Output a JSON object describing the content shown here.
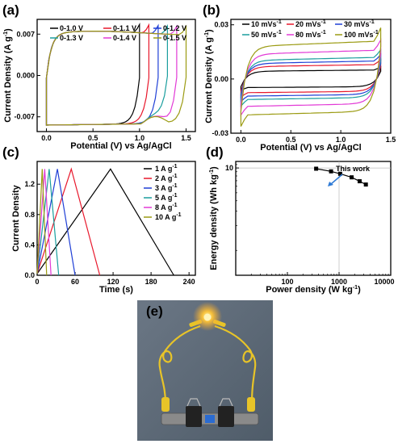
{
  "colors": {
    "black": "#000000",
    "red": "#e8182c",
    "blue": "#1f3fd6",
    "teal": "#1a9e9e",
    "magenta": "#e23ad6",
    "olive": "#9b9b12",
    "photo_bg": "#5c6a78"
  },
  "chart_data": [
    {
      "type": "line",
      "panel": "(a)",
      "xlabel": "Potential (V) vs Ag/AgCl",
      "ylabel": "Current Density (A g",
      "ylabel_sup": "-1",
      "ylabel_end": ")",
      "xlim": [
        -0.1,
        1.6
      ],
      "ylim": [
        -0.0095,
        0.0095
      ],
      "x_ticks": [
        "0.0",
        "0.5",
        "1.0",
        "1.5"
      ],
      "y_ticks": [
        "-0.007",
        "0.000",
        "0.007"
      ],
      "series": [
        {
          "name": "0-1.0 V",
          "vmax": 1.0,
          "color": "#000000"
        },
        {
          "name": "0-1.1 V",
          "vmax": 1.1,
          "color": "#e8182c"
        },
        {
          "name": "0-1.2 V",
          "vmax": 1.2,
          "color": "#1f3fd6"
        },
        {
          "name": "0-1.3 V",
          "vmax": 1.3,
          "color": "#1a9e9e"
        },
        {
          "name": "0-1.4 V",
          "vmax": 1.4,
          "color": "#e23ad6"
        },
        {
          "name": "0-1.5 V",
          "vmax": 1.5,
          "color": "#9b9b12"
        }
      ]
    },
    {
      "type": "line",
      "panel": "(b)",
      "xlabel": "Potential (V) vs Ag/AgCl",
      "ylabel": "Current Density (A g",
      "ylabel_sup": "-1",
      "ylabel_end": ")",
      "xlim": [
        -0.1,
        1.5
      ],
      "ylim": [
        -0.03,
        0.033
      ],
      "x_ticks": [
        "0.0",
        "0.5",
        "1.0",
        "1.5"
      ],
      "y_ticks": [
        "-0.03",
        "0.00",
        "0.03"
      ],
      "series": [
        {
          "name": "10 mVs",
          "sup": "-1",
          "amp": 0.005,
          "color": "#000000"
        },
        {
          "name": "20 mVs",
          "sup": "-1",
          "amp": 0.008,
          "color": "#e8182c"
        },
        {
          "name": "30 mVs",
          "sup": "-1",
          "amp": 0.01,
          "color": "#1f3fd6"
        },
        {
          "name": "50 mVs",
          "sup": "-1",
          "amp": 0.012,
          "color": "#1a9e9e"
        },
        {
          "name": "80 mVs",
          "sup": "-1",
          "amp": 0.016,
          "color": "#e23ad6"
        },
        {
          "name": "100 mVs",
          "sup": "-1",
          "amp": 0.021,
          "color": "#9b9b12"
        }
      ]
    },
    {
      "type": "line",
      "panel": "(c)",
      "xlabel": "Time (s)",
      "ylabel": "Current Density",
      "xlim": [
        0,
        250
      ],
      "ylim": [
        0,
        1.5
      ],
      "x_ticks": [
        "0",
        "60",
        "120",
        "180",
        "240"
      ],
      "y_ticks": [
        "0.0",
        "0.4",
        "0.8",
        "1.2"
      ],
      "series": [
        {
          "name": "1 A g",
          "sup": "-1",
          "charge_end": 116,
          "discharge_end": 216,
          "color": "#000000"
        },
        {
          "name": "2 A g",
          "sup": "-1",
          "charge_end": 54,
          "discharge_end": 99,
          "color": "#e8182c"
        },
        {
          "name": "3 A g",
          "sup": "-1",
          "charge_end": 32,
          "discharge_end": 60,
          "color": "#1f3fd6"
        },
        {
          "name": "5 A g",
          "sup": "-1",
          "charge_end": 19,
          "discharge_end": 34,
          "color": "#1a9e9e"
        },
        {
          "name": "8 A g",
          "sup": "-1",
          "charge_end": 12,
          "discharge_end": 22,
          "color": "#e23ad6"
        },
        {
          "name": "10 A g",
          "sup": "-1",
          "charge_end": 8,
          "discharge_end": 15,
          "color": "#9b9b12"
        }
      ]
    },
    {
      "type": "scatter",
      "panel": "(d)",
      "xlabel": "Power density (W kg",
      "xlabel_sup": "-1",
      "xlabel_end": ")",
      "ylabel": "Energy density (Wh kg",
      "ylabel_sup": "-1",
      "ylabel_end": ")",
      "xscale": "log",
      "yscale": "log",
      "xlim": [
        10,
        10000
      ],
      "ylim": [
        0.5,
        12
      ],
      "x_ticks": [
        "100",
        "1000",
        "10000"
      ],
      "y_ticks": [
        "10"
      ],
      "annotation": "This work",
      "points": [
        [
          360,
          9.8
        ],
        [
          700,
          9.1
        ],
        [
          1050,
          8.5
        ],
        [
          1750,
          7.7
        ],
        [
          2500,
          6.9
        ],
        [
          3300,
          6.3
        ]
      ]
    }
  ],
  "photo": {
    "label": "(e)",
    "description_icon": "led-circuit-photo"
  }
}
